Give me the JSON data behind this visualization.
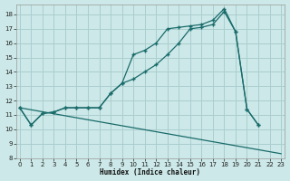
{
  "xlabel": "Humidex (Indice chaleur)",
  "background_color": "#cce8e8",
  "grid_color": "#aacece",
  "line_color": "#1a6b6b",
  "xlim": [
    -0.3,
    23.3
  ],
  "ylim": [
    8.0,
    18.7
  ],
  "yticks": [
    8,
    9,
    10,
    11,
    12,
    13,
    14,
    15,
    16,
    17,
    18
  ],
  "xticks": [
    0,
    1,
    2,
    3,
    4,
    5,
    6,
    7,
    8,
    9,
    10,
    11,
    12,
    13,
    14,
    15,
    16,
    17,
    18,
    19,
    20,
    21,
    22,
    23
  ],
  "line1_x": [
    0,
    1,
    2,
    3,
    4,
    5,
    6,
    7,
    8,
    9,
    10,
    11,
    12,
    13,
    14,
    15,
    16,
    17,
    18,
    19,
    20,
    21
  ],
  "line1_y": [
    11.5,
    10.3,
    11.1,
    11.2,
    11.5,
    11.5,
    11.5,
    11.5,
    12.5,
    13.2,
    13.5,
    14.0,
    14.5,
    15.2,
    16.0,
    17.0,
    17.1,
    17.3,
    18.2,
    16.8,
    11.4,
    10.3
  ],
  "line2_x": [
    0,
    1,
    2,
    3,
    4,
    5,
    6,
    7,
    8,
    9,
    10,
    11,
    12,
    13,
    14,
    15,
    16,
    17,
    18,
    19,
    20,
    21
  ],
  "line2_y": [
    11.5,
    10.3,
    11.1,
    11.2,
    11.5,
    11.5,
    11.5,
    11.5,
    12.5,
    13.2,
    15.2,
    15.5,
    16.0,
    17.0,
    17.1,
    17.2,
    17.3,
    17.6,
    18.4,
    16.8,
    11.4,
    10.3
  ],
  "line3_x": [
    0,
    23
  ],
  "line3_y": [
    11.5,
    8.3
  ]
}
